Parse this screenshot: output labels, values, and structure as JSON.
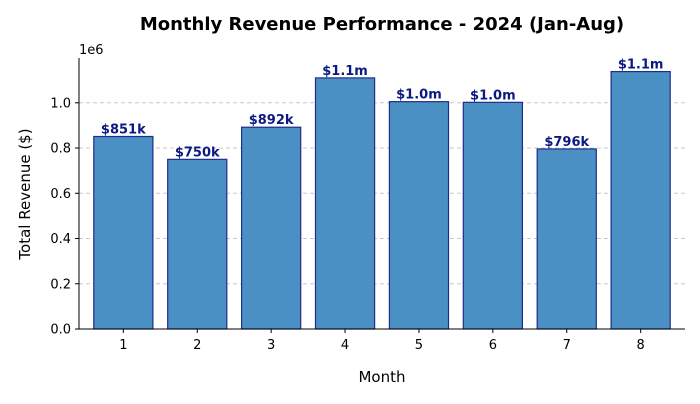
{
  "chart_data": {
    "type": "bar",
    "title": "Monthly Revenue Performance - 2024 (Jan-Aug)",
    "xlabel": "Month",
    "ylabel": "Total Revenue ($)",
    "y_offset_label": "1e6",
    "categories": [
      "1",
      "2",
      "3",
      "4",
      "5",
      "6",
      "7",
      "8"
    ],
    "values": [
      851000,
      750000,
      892000,
      1110000,
      1005000,
      1002000,
      796000,
      1138000
    ],
    "data_labels": [
      "$851k",
      "$750k",
      "$892k",
      "$1.1m",
      "$1.0m",
      "$1.0m",
      "$796k",
      "$1.1m"
    ],
    "ylim": [
      0,
      1198000
    ],
    "yticks": [
      0,
      200000,
      400000,
      600000,
      800000,
      1000000
    ],
    "ytick_labels": [
      "0.0",
      "0.2",
      "0.4",
      "0.6",
      "0.8",
      "1.0"
    ],
    "grid": "y-dashed",
    "legend": "none",
    "colors": {
      "bar_fill": "#4a90c4",
      "bar_edge": "#1f2d8a",
      "data_label": "#0b1a80",
      "grid": "#c8c8c8",
      "axis": "#000000"
    }
  }
}
